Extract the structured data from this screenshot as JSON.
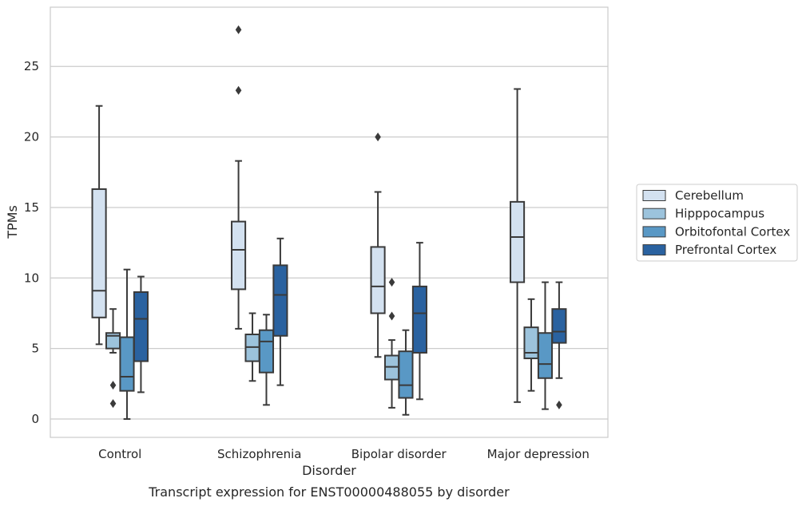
{
  "chart_data": {
    "type": "box",
    "caption": "Transcript expression for ENST00000488055 by disorder",
    "xlabel": "Disorder",
    "ylabel": "TPMs",
    "ylim": [
      -1.3,
      29.2
    ],
    "yticks": [
      0,
      5,
      10,
      15,
      20,
      25
    ],
    "grid": "horizontal",
    "legend_position": "right",
    "categories": [
      "Control",
      "Schizophrenia",
      "Bipolar disorder",
      "Major depression"
    ],
    "series": [
      {
        "name": "Cerebellum",
        "color": "#d3e1f0",
        "boxes": [
          {
            "whisker_low": 5.3,
            "q1": 7.2,
            "median": 9.1,
            "q3": 16.3,
            "whisker_high": 22.2,
            "outliers": []
          },
          {
            "whisker_low": 6.4,
            "q1": 9.2,
            "median": 12.0,
            "q3": 14.0,
            "whisker_high": 18.3,
            "outliers": [
              23.3,
              27.6
            ]
          },
          {
            "whisker_low": 4.4,
            "q1": 7.5,
            "median": 9.4,
            "q3": 12.2,
            "whisker_high": 16.1,
            "outliers": [
              20.0
            ]
          },
          {
            "whisker_low": 1.2,
            "q1": 9.7,
            "median": 12.9,
            "q3": 15.4,
            "whisker_high": 23.4,
            "outliers": []
          }
        ]
      },
      {
        "name": "Hipppocampus",
        "color": "#9cc3dc",
        "boxes": [
          {
            "whisker_low": 4.7,
            "q1": 5.0,
            "median": 5.9,
            "q3": 6.1,
            "whisker_high": 7.8,
            "outliers": [
              2.4,
              1.1
            ]
          },
          {
            "whisker_low": 2.7,
            "q1": 4.1,
            "median": 5.1,
            "q3": 6.0,
            "whisker_high": 7.5,
            "outliers": []
          },
          {
            "whisker_low": 0.8,
            "q1": 2.8,
            "median": 3.7,
            "q3": 4.5,
            "whisker_high": 5.6,
            "outliers": [
              9.7,
              7.3
            ]
          },
          {
            "whisker_low": 2.0,
            "q1": 4.3,
            "median": 4.7,
            "q3": 6.5,
            "whisker_high": 8.5,
            "outliers": []
          }
        ]
      },
      {
        "name": "Orbitofontal Cortex",
        "color": "#5998c5",
        "boxes": [
          {
            "whisker_low": 0.0,
            "q1": 2.0,
            "median": 3.0,
            "q3": 5.8,
            "whisker_high": 10.6,
            "outliers": []
          },
          {
            "whisker_low": 1.0,
            "q1": 3.3,
            "median": 5.5,
            "q3": 6.3,
            "whisker_high": 7.4,
            "outliers": []
          },
          {
            "whisker_low": 0.3,
            "q1": 1.5,
            "median": 2.4,
            "q3": 4.8,
            "whisker_high": 6.3,
            "outliers": []
          },
          {
            "whisker_low": 0.7,
            "q1": 2.9,
            "median": 3.9,
            "q3": 6.1,
            "whisker_high": 9.7,
            "outliers": []
          }
        ]
      },
      {
        "name": "Prefrontal Cortex",
        "color": "#2a62a0",
        "boxes": [
          {
            "whisker_low": 1.9,
            "q1": 4.1,
            "median": 7.1,
            "q3": 9.0,
            "whisker_high": 10.1,
            "outliers": []
          },
          {
            "whisker_low": 2.4,
            "q1": 5.9,
            "median": 8.8,
            "q3": 10.9,
            "whisker_high": 12.8,
            "outliers": []
          },
          {
            "whisker_low": 1.4,
            "q1": 4.7,
            "median": 7.5,
            "q3": 9.4,
            "whisker_high": 12.5,
            "outliers": []
          },
          {
            "whisker_low": 2.9,
            "q1": 5.4,
            "median": 6.2,
            "q3": 7.8,
            "whisker_high": 9.7,
            "outliers": [
              1.0
            ]
          }
        ]
      }
    ]
  }
}
